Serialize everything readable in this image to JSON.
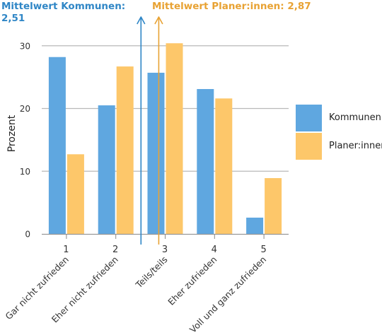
{
  "colors": {
    "kommunen": "#5fa7e0",
    "planer": "#fdc76a",
    "grid": "#b9b9b9",
    "axis": "#555555",
    "text": "#333333"
  },
  "means": {
    "kommunen": {
      "label": "Mittelwert Kommunen:",
      "value": "2,51",
      "x": 2.51,
      "color": "#2f86c6"
    },
    "planer": {
      "label": "Mittelwert Planer:innen: 2,87",
      "x": 2.87,
      "color": "#e8a233"
    }
  },
  "legend": [
    {
      "label": "Kommunen",
      "color": "#5fa7e0"
    },
    {
      "label": "Planer:innen",
      "color": "#fdc76a"
    }
  ],
  "chart_data": {
    "type": "bar",
    "categories": [
      "1",
      "2",
      "3",
      "4",
      "5"
    ],
    "category_descriptions": [
      "Gar nicht zufrieden",
      "Eher nicht zufrieden",
      "Teils/teils",
      "Eher zufrieden",
      "Voll und ganz zufrieden"
    ],
    "series": [
      {
        "name": "Kommunen",
        "values": [
          28.2,
          20.5,
          25.7,
          23.1,
          2.6
        ]
      },
      {
        "name": "Planer:innen",
        "values": [
          12.7,
          26.7,
          30.4,
          21.6,
          8.9
        ]
      }
    ],
    "ylabel": "Prozent",
    "yticks": [
      0,
      10,
      20,
      30
    ],
    "ylim": [
      0,
      32
    ],
    "grid": true,
    "legend_position": "right",
    "vertical_markers": [
      2.51,
      2.87
    ]
  }
}
